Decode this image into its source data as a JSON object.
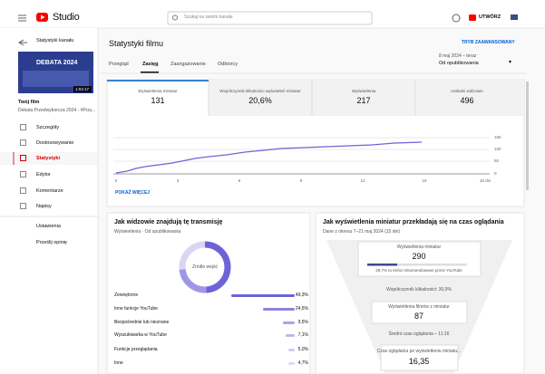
{
  "topbar": {
    "logo": "Studio",
    "search_placeholder": "Szukaj na swoim kanale",
    "create": "UTWÓRZ"
  },
  "sidebar": {
    "back": "Statystyki kanału",
    "thumbnail_title": "DEBATA 2024",
    "duration": "1:04:17",
    "video_label": "Twój film",
    "video_title": "Debata Przedwyborcza 2024 - #Przy...",
    "menu": [
      "Szczegóły",
      "Dostosowywanie",
      "Statystyki",
      "Edytor",
      "Komentarze",
      "Napisy"
    ],
    "bottom": [
      "Ustawienia",
      "Prześlij opinię"
    ]
  },
  "main": {
    "title": "Statystyki filmu",
    "advanced": "TRYB ZAAWANSOWANY",
    "tabs": [
      "Przegląd",
      "Zasięg",
      "Zaangażowanie",
      "Odbiorcy"
    ],
    "date_range": "8 maj 2024 – teraz",
    "date_label": "Od opublikowania",
    "metrics": [
      {
        "label": "Wyświetlenia miniatur",
        "value": "131"
      },
      {
        "label": "Współczynnik klikalności wyświetleń miniatur",
        "value": "20,6%"
      },
      {
        "label": "Wyświetlenia",
        "value": "217"
      },
      {
        "label": "Unikalni widzowie",
        "value": "496"
      }
    ],
    "chart": {
      "yticks": [
        "150",
        "100",
        "50",
        "0"
      ],
      "xticks": [
        "0",
        "3",
        "6",
        "9",
        "12",
        "15",
        "18 dni"
      ]
    },
    "show_more": "POKAŻ WIĘCEJ"
  },
  "sources": {
    "title": "Jak widzowie znajdują tę transmisję",
    "subtitle": "Wyświetlenia · Od opublikowania",
    "donut_label": "Źródło wejść",
    "rows": [
      {
        "name": "Zewnętrzne",
        "value": "49,3%"
      },
      {
        "name": "Inne funkcje YouTube",
        "value": "24,5%"
      },
      {
        "name": "Bezpośrednie lub nieznane",
        "value": "9,5%"
      },
      {
        "name": "Wyszukiwarka w YouTube",
        "value": "7,1%"
      },
      {
        "name": "Funkcje przeglądania",
        "value": "5,0%"
      },
      {
        "name": "Inne",
        "value": "4,7%"
      }
    ]
  },
  "funnel": {
    "title": "Jak wyświetlenia miniatur przekładają się na czas oglądania",
    "subtitle": "Dane z okresu 7–21 maj 2024 (15 dni)",
    "impressions_label": "Wyświetlenia miniatur",
    "impressions": "290",
    "recommended": "29,7% to treści rekomendowane przez YouTube",
    "ctr": "Współczynnik klikalności: 30,0%",
    "views_label": "Wyświetlenia filmów z miniatur",
    "views": "87",
    "avg": "Średni czas oglądania – 11:16",
    "watch_label": "Czas oglądania po wyświetleniu miniatu...",
    "watch": "16,35"
  }
}
